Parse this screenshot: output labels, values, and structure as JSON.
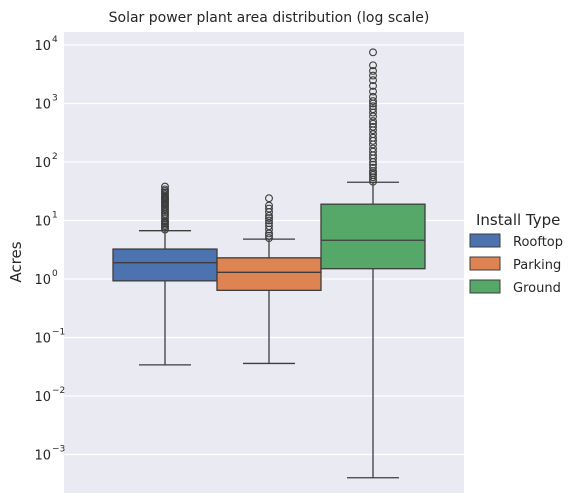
{
  "chart_data": {
    "type": "box",
    "title": "Solar power plant area distribution (log scale)",
    "xlabel": "",
    "ylabel": "Acres",
    "yscale": "log",
    "ylim": [
      0.00022,
      20000
    ],
    "yticks": [
      {
        "base": "10",
        "exp": "4",
        "value": 10000
      },
      {
        "base": "10",
        "exp": "3",
        "value": 1000
      },
      {
        "base": "10",
        "exp": "2",
        "value": 100
      },
      {
        "base": "10",
        "exp": "1",
        "value": 10
      },
      {
        "base": "10",
        "exp": "0",
        "value": 1
      },
      {
        "base": "10",
        "exp": "−1",
        "value": 0.1
      },
      {
        "base": "10",
        "exp": "−2",
        "value": 0.01
      },
      {
        "base": "10",
        "exp": "−3",
        "value": 0.001
      }
    ],
    "grid": true,
    "legend": {
      "title": "Install Type",
      "placement": "right",
      "entries": [
        "Rooftop",
        "Parking",
        "Ground"
      ]
    },
    "series": [
      {
        "name": "Rooftop",
        "color": "#4c72b0",
        "whisker_low": 0.034,
        "q1": 0.93,
        "median": 1.9,
        "q3": 3.25,
        "whisker_high": 6.7,
        "outliers": [
          7,
          7.5,
          8,
          8.5,
          9,
          9.5,
          10,
          11,
          12,
          13,
          14,
          15,
          16,
          17,
          18,
          19,
          20,
          21,
          22,
          23,
          24,
          25,
          26,
          28,
          30,
          32,
          34,
          38
        ]
      },
      {
        "name": "Parking",
        "color": "#dd8452",
        "whisker_low": 0.036,
        "q1": 0.64,
        "median": 1.3,
        "q3": 2.3,
        "whisker_high": 4.8,
        "outliers": [
          5,
          5.5,
          6,
          7,
          8,
          9,
          10,
          11,
          12,
          14,
          16,
          18,
          24
        ]
      },
      {
        "name": "Ground",
        "color": "#55a868",
        "whisker_low": 0.0004,
        "q1": 1.5,
        "median": 4.6,
        "q3": 19,
        "whisker_high": 45,
        "outliers": [
          46,
          50,
          55,
          60,
          65,
          70,
          80,
          90,
          100,
          115,
          130,
          150,
          170,
          200,
          230,
          260,
          300,
          350,
          400,
          450,
          500,
          600,
          700,
          800,
          900,
          1000,
          1100,
          1300,
          1600,
          2000,
          2500,
          3000,
          3600,
          4500,
          7500
        ]
      }
    ]
  }
}
